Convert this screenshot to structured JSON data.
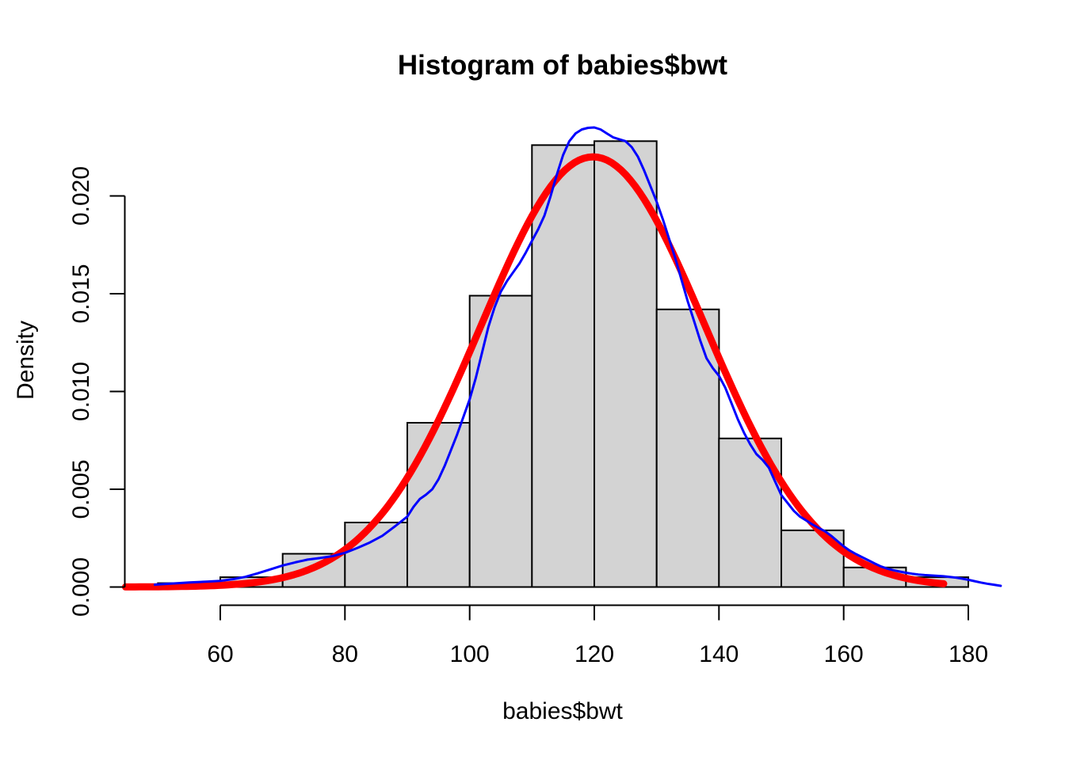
{
  "chart_data": {
    "type": "histogram",
    "title": "Histogram of babies$bwt",
    "xlabel": "babies$bwt",
    "ylabel": "Density",
    "grid": false,
    "legend": "none",
    "xlim": [
      44.8,
      185.2
    ],
    "ylim": [
      -0.00094,
      0.02444
    ],
    "x_ticks": {
      "values": [
        60,
        80,
        100,
        120,
        140,
        160,
        180
      ],
      "labels": [
        "60",
        "80",
        "100",
        "120",
        "140",
        "160",
        "180"
      ]
    },
    "y_ticks": {
      "values": [
        0.0,
        0.005,
        0.01,
        0.015,
        0.02
      ],
      "labels": [
        "0.000",
        "0.005",
        "0.010",
        "0.015",
        "0.020"
      ]
    },
    "histogram": {
      "bin_start": 50,
      "bin_width": 10,
      "bin_edges": [
        50,
        60,
        70,
        80,
        90,
        100,
        110,
        120,
        130,
        140,
        150,
        160,
        170,
        180
      ],
      "densities": [
        0.0002,
        0.0005,
        0.0017,
        0.0033,
        0.0084,
        0.0149,
        0.0226,
        0.0228,
        0.0142,
        0.0076,
        0.0029,
        0.001,
        0.0005
      ],
      "bar_fill": "#d3d3d3",
      "bar_border": "#000000"
    },
    "normal_curve": {
      "name": "normal-density-fit",
      "color": "#ff0000",
      "line_width": 9,
      "mean": 119.8,
      "sd": 18.0,
      "peak_density": 0.022,
      "x_from": 44.8,
      "x_to": 176.3
    },
    "density_curve": {
      "name": "kernel-density-estimate",
      "color": "#0000ff",
      "line_width": 3,
      "points": [
        [
          49.5,
          0.00012
        ],
        [
          52,
          0.00017
        ],
        [
          55,
          0.00023
        ],
        [
          58,
          0.00028
        ],
        [
          60,
          0.00031
        ],
        [
          62,
          0.0004
        ],
        [
          64,
          0.00052
        ],
        [
          66,
          0.0007
        ],
        [
          68,
          0.0009
        ],
        [
          70,
          0.0011
        ],
        [
          72,
          0.00126
        ],
        [
          74,
          0.0014
        ],
        [
          76,
          0.00148
        ],
        [
          78,
          0.00158
        ],
        [
          80,
          0.00175
        ],
        [
          82,
          0.002
        ],
        [
          84,
          0.00228
        ],
        [
          86,
          0.00262
        ],
        [
          88,
          0.0031
        ],
        [
          90,
          0.0036
        ],
        [
          91,
          0.0041
        ],
        [
          92,
          0.0045
        ],
        [
          93,
          0.00472
        ],
        [
          94,
          0.005
        ],
        [
          95,
          0.0055
        ],
        [
          96,
          0.0062
        ],
        [
          97,
          0.007
        ],
        [
          98,
          0.0078
        ],
        [
          99,
          0.0087
        ],
        [
          100,
          0.0096
        ],
        [
          101,
          0.0107
        ],
        [
          102,
          0.012
        ],
        [
          103,
          0.0133
        ],
        [
          104,
          0.0143
        ],
        [
          105,
          0.0151
        ],
        [
          106,
          0.01565
        ],
        [
          107,
          0.0161
        ],
        [
          108,
          0.01655
        ],
        [
          109,
          0.0171
        ],
        [
          110,
          0.0177
        ],
        [
          111,
          0.0183
        ],
        [
          112,
          0.019
        ],
        [
          113,
          0.02
        ],
        [
          114,
          0.0211
        ],
        [
          115,
          0.0221
        ],
        [
          116,
          0.0228
        ],
        [
          117,
          0.0232
        ],
        [
          118,
          0.0234
        ],
        [
          119,
          0.02348
        ],
        [
          120,
          0.0235
        ],
        [
          121,
          0.0234
        ],
        [
          122,
          0.0232
        ],
        [
          123,
          0.023
        ],
        [
          124,
          0.0229
        ],
        [
          125,
          0.0228
        ],
        [
          126,
          0.0225
        ],
        [
          127,
          0.022
        ],
        [
          128,
          0.0213
        ],
        [
          129,
          0.0205
        ],
        [
          130,
          0.0197
        ],
        [
          131,
          0.0188
        ],
        [
          132,
          0.0178
        ],
        [
          133,
          0.0168
        ],
        [
          134,
          0.0157
        ],
        [
          135,
          0.0146
        ],
        [
          136,
          0.0136
        ],
        [
          137,
          0.0126
        ],
        [
          138,
          0.0117
        ],
        [
          139,
          0.0112
        ],
        [
          140,
          0.0108
        ],
        [
          141,
          0.0102
        ],
        [
          142,
          0.0094
        ],
        [
          143,
          0.0086
        ],
        [
          144,
          0.0079
        ],
        [
          145,
          0.0073
        ],
        [
          146,
          0.0068
        ],
        [
          147,
          0.0065
        ],
        [
          148,
          0.0061
        ],
        [
          149,
          0.0054
        ],
        [
          150,
          0.0047
        ],
        [
          151,
          0.0043
        ],
        [
          152,
          0.0039
        ],
        [
          153,
          0.0036
        ],
        [
          154,
          0.0034
        ],
        [
          155,
          0.0032
        ],
        [
          156,
          0.00302
        ],
        [
          157,
          0.00285
        ],
        [
          158,
          0.00262
        ],
        [
          159,
          0.00235
        ],
        [
          160,
          0.00208
        ],
        [
          161,
          0.00186
        ],
        [
          162,
          0.00168
        ],
        [
          163,
          0.00152
        ],
        [
          164,
          0.00136
        ],
        [
          165,
          0.0012
        ],
        [
          166,
          0.00105
        ],
        [
          167,
          0.00094
        ],
        [
          168,
          0.00086
        ],
        [
          169,
          0.00079
        ],
        [
          170,
          0.00073
        ],
        [
          171,
          0.00068
        ],
        [
          172,
          0.00064
        ],
        [
          173,
          0.00061
        ],
        [
          174,
          0.00059
        ],
        [
          175,
          0.00057
        ],
        [
          176,
          0.00055
        ],
        [
          177,
          0.00052
        ],
        [
          178,
          0.00048
        ],
        [
          179,
          0.00043
        ],
        [
          180,
          0.00037
        ],
        [
          181,
          0.0003
        ],
        [
          182,
          0.00023
        ],
        [
          183,
          0.00017
        ],
        [
          184,
          0.00012
        ],
        [
          185.2,
          6e-05
        ]
      ]
    },
    "axis_color": "#000000",
    "text_color": "#000000",
    "background_color": "#ffffff"
  }
}
